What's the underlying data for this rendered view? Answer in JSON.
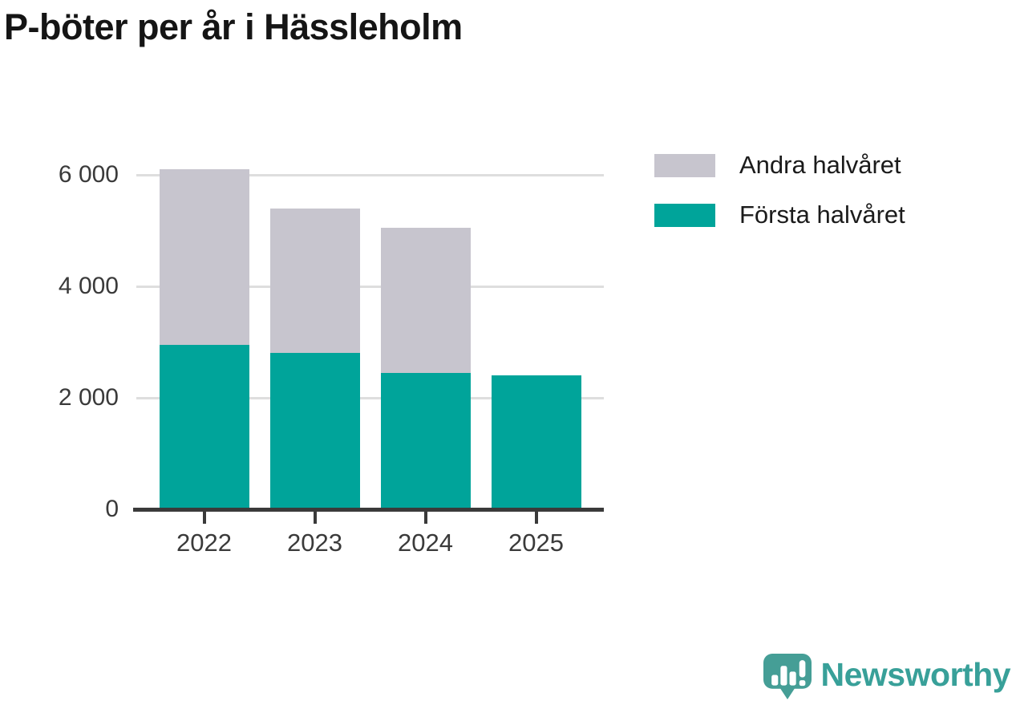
{
  "chart_data": {
    "type": "bar",
    "stacked": true,
    "title": "P-böter per år i Hässleholm",
    "categories": [
      "2022",
      "2023",
      "2024",
      "2025"
    ],
    "series": [
      {
        "name": "Första halvåret",
        "color": "#00a49a",
        "values": [
          2950,
          2800,
          2450,
          2400
        ]
      },
      {
        "name": "Andra halvåret",
        "color": "#c7c5ce",
        "values": [
          3150,
          2600,
          2600,
          0
        ]
      }
    ],
    "totals": [
      6100,
      5400,
      5050,
      2400
    ],
    "xlabel": "",
    "ylabel": "",
    "y_tick_values": [
      0,
      2000,
      4000,
      6000
    ],
    "y_tick_labels": [
      "0",
      "2 000",
      "4 000",
      "6 000"
    ],
    "ylim": [
      0,
      6300
    ],
    "grid": "horizontal",
    "legend_position": "top-right"
  },
  "legend": {
    "items": [
      {
        "label": "Andra halvåret",
        "color": "#c7c5ce"
      },
      {
        "label": "Första halvåret",
        "color": "#00a49a"
      }
    ]
  },
  "branding": {
    "logo_text": "Newsworthy",
    "logo_icon": "bar-chart-speech-bubble-icon",
    "logo_color": "#459e96",
    "text_color": "#38a099"
  },
  "colors": {
    "first_half": "#00a49a",
    "second_half": "#c7c5ce",
    "gridline": "#dedede",
    "axis": "#3a3a3a",
    "title_text": "#151515"
  }
}
